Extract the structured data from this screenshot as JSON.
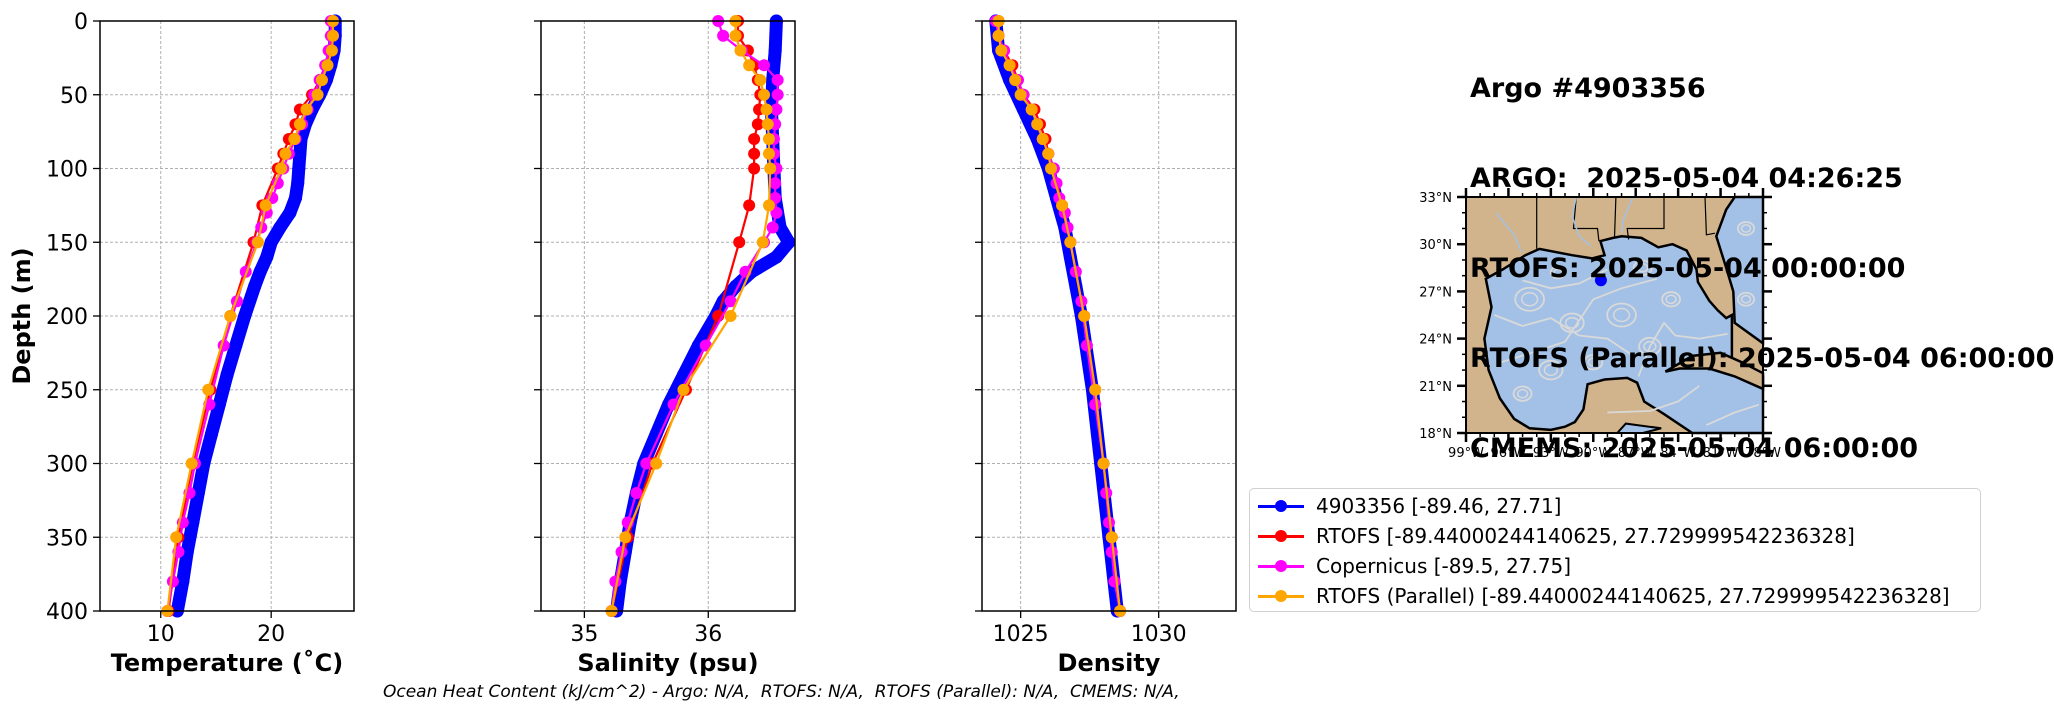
{
  "info": {
    "lines": [
      "Argo #4903356",
      "ARGO:  2025-05-04 04:26:25",
      "RTOFS: 2025-05-04 00:00:00",
      "RTOFS (Parallel): 2025-05-04 06:00:00",
      "CMEMS: 2025-05-04 06:00:00"
    ]
  },
  "footer": "Ocean Heat Content (kJ/cm^2) - Argo: N/A,  RTOFS: N/A,  RTOFS (Parallel): N/A,  CMEMS: N/A,",
  "colors": {
    "argo": "#0000ff",
    "rtofs": "#ff0000",
    "copernicus": "#ff00ff",
    "parallel": "#ffa500",
    "land": "#d2b48c",
    "ocean": "#a3c1e6",
    "grid": "#b0b0b0"
  },
  "legend": [
    {
      "label": "4903356 [-89.46, 27.71]",
      "color": "#0000ff"
    },
    {
      "label": "RTOFS [-89.44000244140625, 27.729999542236328]",
      "color": "#ff0000"
    },
    {
      "label": "Copernicus [-89.5, 27.75]",
      "color": "#ff00ff"
    },
    {
      "label": "RTOFS (Parallel) [-89.44000244140625, 27.729999542236328]",
      "color": "#ffa500"
    }
  ],
  "chart_data": [
    {
      "type": "line",
      "xlabel": "Temperature (˚C)",
      "ylabel": "Depth (m)",
      "xlim": [
        4.5,
        27.5
      ],
      "ylim": [
        400,
        0
      ],
      "xticks": [
        "10",
        "20"
      ],
      "xtick_values": [
        10,
        20
      ],
      "yticks": [
        "0",
        "50",
        "100",
        "150",
        "200",
        "250",
        "300",
        "350",
        "400"
      ],
      "ytick_values": [
        0,
        50,
        100,
        150,
        200,
        250,
        300,
        350,
        400
      ],
      "grid": true,
      "series": [
        {
          "name": "4903356",
          "depth": [
            0,
            10,
            20,
            30,
            40,
            50,
            60,
            70,
            80,
            90,
            100,
            110,
            120,
            130,
            140,
            150,
            160,
            170,
            180,
            200,
            220,
            240,
            260,
            280,
            300,
            320,
            340,
            360,
            380,
            400
          ],
          "values": [
            25.8,
            25.8,
            25.7,
            25.4,
            25.0,
            24.4,
            23.7,
            23.1,
            22.7,
            22.6,
            22.5,
            22.4,
            22.2,
            21.7,
            20.8,
            20.0,
            19.6,
            19.0,
            18.5,
            17.6,
            16.8,
            16.0,
            15.3,
            14.6,
            13.9,
            13.4,
            12.9,
            12.4,
            12.0,
            11.5
          ]
        },
        {
          "name": "RTOFS",
          "depth": [
            0,
            10,
            20,
            30,
            40,
            50,
            60,
            70,
            80,
            90,
            100,
            125,
            150,
            200,
            250,
            300,
            350,
            400
          ],
          "values": [
            25.5,
            25.5,
            25.3,
            24.9,
            24.4,
            23.7,
            22.6,
            22.2,
            21.6,
            21.1,
            20.6,
            19.2,
            18.4,
            16.3,
            14.5,
            12.9,
            11.6,
            10.7
          ]
        },
        {
          "name": "Copernicus",
          "depth": [
            0,
            10,
            20,
            30,
            40,
            50,
            60,
            70,
            80,
            90,
            100,
            110,
            120,
            130,
            140,
            150,
            170,
            190,
            220,
            260,
            300,
            320,
            340,
            360,
            380,
            400
          ],
          "values": [
            25.4,
            25.4,
            25.2,
            24.9,
            24.4,
            23.9,
            23.3,
            22.8,
            22.2,
            21.6,
            21.1,
            20.6,
            20.1,
            19.6,
            19.1,
            18.7,
            17.7,
            16.9,
            15.7,
            14.4,
            13.1,
            12.6,
            12.0,
            11.6,
            11.1,
            10.6
          ]
        },
        {
          "name": "RTOFS (Parallel)",
          "depth": [
            0,
            10,
            20,
            30,
            40,
            50,
            60,
            70,
            80,
            90,
            100,
            125,
            150,
            200,
            250,
            300,
            350,
            400
          ],
          "values": [
            25.6,
            25.6,
            25.5,
            25.1,
            24.6,
            24.2,
            23.2,
            22.6,
            22.1,
            21.3,
            20.9,
            19.5,
            18.8,
            16.3,
            14.3,
            12.8,
            11.4,
            10.6
          ]
        }
      ]
    },
    {
      "type": "line",
      "xlabel": "Salinity (psu)",
      "xlim": [
        34.65,
        36.7
      ],
      "ylim": [
        400,
        0
      ],
      "xticks": [
        "35",
        "36"
      ],
      "xtick_values": [
        35,
        36
      ],
      "grid": true,
      "series": [
        {
          "name": "4903356",
          "depth": [
            0,
            20,
            40,
            60,
            80,
            100,
            120,
            140,
            150,
            160,
            170,
            180,
            190,
            200,
            220,
            240,
            260,
            280,
            300,
            320,
            340,
            360,
            380,
            400
          ],
          "values": [
            36.55,
            36.54,
            36.52,
            36.51,
            36.52,
            36.53,
            36.54,
            36.58,
            36.65,
            36.55,
            36.35,
            36.22,
            36.12,
            36.06,
            35.92,
            35.8,
            35.68,
            35.58,
            35.48,
            35.42,
            35.37,
            35.33,
            35.29,
            35.26
          ]
        },
        {
          "name": "RTOFS",
          "depth": [
            0,
            10,
            20,
            30,
            40,
            50,
            60,
            70,
            80,
            90,
            100,
            125,
            150,
            200,
            250,
            300,
            350,
            400
          ],
          "values": [
            36.24,
            36.24,
            36.32,
            36.37,
            36.4,
            36.42,
            36.41,
            36.4,
            36.37,
            36.37,
            36.37,
            36.33,
            36.25,
            36.08,
            35.82,
            35.55,
            35.35,
            35.22
          ]
        },
        {
          "name": "Copernicus",
          "depth": [
            0,
            10,
            20,
            30,
            40,
            50,
            60,
            70,
            80,
            90,
            100,
            110,
            120,
            130,
            140,
            150,
            170,
            190,
            220,
            260,
            300,
            320,
            340,
            360,
            380,
            400
          ],
          "values": [
            36.08,
            36.12,
            36.27,
            36.45,
            36.56,
            36.56,
            36.55,
            36.54,
            36.53,
            36.53,
            36.55,
            36.54,
            36.54,
            36.55,
            36.52,
            36.45,
            36.3,
            36.18,
            35.98,
            35.72,
            35.5,
            35.42,
            35.35,
            35.3,
            35.25,
            35.22
          ]
        },
        {
          "name": "RTOFS (Parallel)",
          "depth": [
            0,
            10,
            20,
            30,
            40,
            50,
            60,
            70,
            80,
            90,
            100,
            125,
            150,
            200,
            250,
            300,
            350,
            400
          ],
          "values": [
            36.22,
            36.22,
            36.26,
            36.33,
            36.42,
            36.45,
            36.47,
            36.48,
            36.49,
            36.49,
            36.5,
            36.49,
            36.44,
            36.18,
            35.8,
            35.58,
            35.33,
            35.22
          ]
        }
      ]
    },
    {
      "type": "line",
      "xlabel": "Density",
      "xlim": [
        1023.6,
        1032.8
      ],
      "ylim": [
        400,
        0
      ],
      "xticks": [
        "1025",
        "1030"
      ],
      "xtick_values": [
        1025,
        1030
      ],
      "grid": true,
      "series": [
        {
          "name": "4903356",
          "depth": [
            0,
            20,
            40,
            60,
            80,
            100,
            120,
            140,
            160,
            180,
            200,
            250,
            300,
            350,
            400
          ],
          "values": [
            1024.1,
            1024.2,
            1024.6,
            1025.1,
            1025.6,
            1026.0,
            1026.3,
            1026.6,
            1026.8,
            1027.0,
            1027.2,
            1027.6,
            1027.9,
            1028.2,
            1028.5
          ]
        },
        {
          "name": "RTOFS",
          "depth": [
            0,
            10,
            20,
            30,
            40,
            50,
            60,
            70,
            80,
            90,
            100,
            125,
            150,
            200,
            250,
            300,
            350,
            400
          ],
          "values": [
            1024.2,
            1024.2,
            1024.4,
            1024.7,
            1024.9,
            1025.1,
            1025.5,
            1025.7,
            1025.9,
            1026.0,
            1026.2,
            1026.5,
            1026.8,
            1027.3,
            1027.7,
            1028.0,
            1028.3,
            1028.6
          ]
        },
        {
          "name": "Copernicus",
          "depth": [
            0,
            10,
            20,
            30,
            40,
            50,
            60,
            70,
            80,
            90,
            100,
            110,
            120,
            130,
            140,
            150,
            170,
            190,
            220,
            260,
            300,
            320,
            340,
            360,
            380,
            400
          ],
          "values": [
            1024.1,
            1024.2,
            1024.4,
            1024.6,
            1024.9,
            1025.1,
            1025.4,
            1025.6,
            1025.8,
            1026.0,
            1026.2,
            1026.3,
            1026.4,
            1026.6,
            1026.7,
            1026.8,
            1027.0,
            1027.2,
            1027.4,
            1027.7,
            1028.0,
            1028.1,
            1028.2,
            1028.3,
            1028.4,
            1028.6
          ]
        },
        {
          "name": "RTOFS (Parallel)",
          "depth": [
            0,
            10,
            20,
            30,
            40,
            50,
            60,
            70,
            80,
            90,
            100,
            125,
            150,
            200,
            250,
            300,
            350,
            400
          ],
          "values": [
            1024.2,
            1024.2,
            1024.3,
            1024.6,
            1024.8,
            1025.0,
            1025.4,
            1025.6,
            1025.8,
            1026.0,
            1026.1,
            1026.5,
            1026.8,
            1027.3,
            1027.7,
            1028.0,
            1028.3,
            1028.6
          ]
        }
      ]
    }
  ],
  "map": {
    "lat_ticks": [
      "33°N",
      "30°N",
      "27°N",
      "24°N",
      "21°N",
      "18°N"
    ],
    "lon_ticks": [
      "99°W",
      "96°W",
      "93°W",
      "90°W",
      "87°W",
      "84°W",
      "81°W",
      "78°W"
    ],
    "lat_range": [
      18,
      33
    ],
    "lon_range": [
      -99,
      -78
    ],
    "float_position": {
      "lon": -89.46,
      "lat": 27.71
    }
  }
}
